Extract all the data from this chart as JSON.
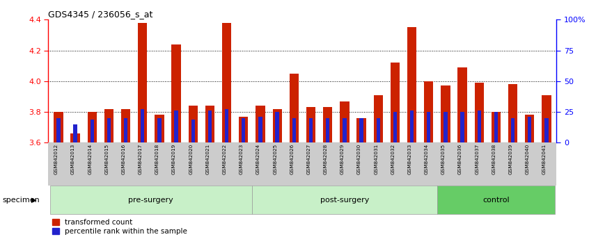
{
  "title": "GDS4345 / 236056_s_at",
  "samples": [
    "GSM842012",
    "GSM842013",
    "GSM842014",
    "GSM842015",
    "GSM842016",
    "GSM842017",
    "GSM842018",
    "GSM842019",
    "GSM842020",
    "GSM842021",
    "GSM842022",
    "GSM842023",
    "GSM842024",
    "GSM842025",
    "GSM842026",
    "GSM842027",
    "GSM842028",
    "GSM842029",
    "GSM842030",
    "GSM842031",
    "GSM842032",
    "GSM842033",
    "GSM842034",
    "GSM842035",
    "GSM842036",
    "GSM842037",
    "GSM842038",
    "GSM842039",
    "GSM842040",
    "GSM842041"
  ],
  "red_values": [
    3.8,
    3.66,
    3.8,
    3.82,
    3.82,
    4.38,
    3.78,
    4.24,
    3.84,
    3.84,
    4.38,
    3.77,
    3.84,
    3.82,
    4.05,
    3.83,
    3.83,
    3.87,
    3.76,
    3.91,
    4.12,
    4.35,
    4.0,
    3.97,
    4.09,
    3.99,
    3.8,
    3.98,
    3.78,
    3.91
  ],
  "blue_values": [
    3.76,
    3.72,
    3.75,
    3.76,
    3.76,
    3.82,
    3.76,
    3.81,
    3.75,
    3.81,
    3.82,
    3.76,
    3.77,
    3.8,
    3.76,
    3.76,
    3.76,
    3.76,
    3.76,
    3.76,
    3.8,
    3.81,
    3.8,
    3.8,
    3.8,
    3.81,
    3.8,
    3.76,
    3.77,
    3.76
  ],
  "groups": [
    {
      "label": "pre-surgery",
      "start": 0,
      "end": 11
    },
    {
      "label": "post-surgery",
      "start": 12,
      "end": 22
    },
    {
      "label": "control",
      "start": 23,
      "end": 29
    }
  ],
  "group_colors": [
    "#c8f0c8",
    "#c8f0c8",
    "#66cc66"
  ],
  "ymin": 3.6,
  "ymax": 4.4,
  "yticks_left": [
    3.6,
    3.8,
    4.0,
    4.2,
    4.4
  ],
  "yticks_right_pct": [
    0,
    25,
    50,
    75,
    100
  ],
  "ytick_labels_right": [
    "0",
    "25",
    "50",
    "75",
    "100%"
  ],
  "bar_color_red": "#CC2200",
  "bar_color_blue": "#2222CC",
  "legend_red": "transformed count",
  "legend_blue": "percentile rank within the sample",
  "bar_width": 0.55,
  "blue_bar_width": 0.22,
  "specimen_label": "specimen"
}
